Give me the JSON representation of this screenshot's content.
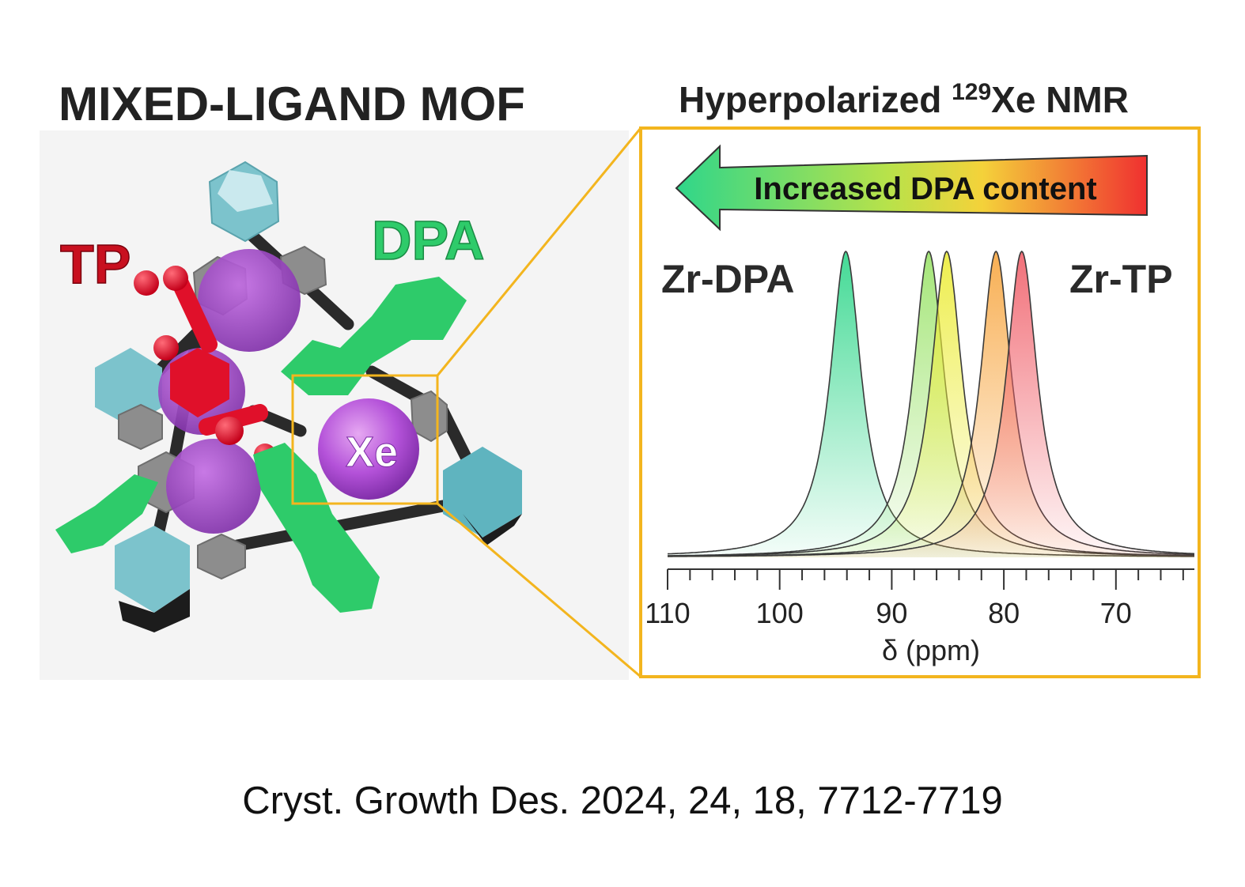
{
  "left_panel": {
    "title": "MIXED-LIGAND MOF",
    "label_tp": "TP",
    "label_dpa": "DPA",
    "label_xe": "Xe"
  },
  "right_panel": {
    "title_prefix": "Hyperpolarized ",
    "title_superscript": "129",
    "title_suffix": "Xe NMR",
    "arrow_label": "Increased DPA content",
    "label_left": "Zr-DPA",
    "label_right": "Zr-TP"
  },
  "chart_data": {
    "type": "line",
    "xlabel": "δ (ppm)",
    "ylabel": "",
    "xlim": [
      110,
      63
    ],
    "x_reversed": true,
    "ticks": [
      "110",
      "100",
      "90",
      "80",
      "70"
    ],
    "tick_values": [
      110,
      100,
      90,
      80,
      70
    ],
    "minor_tick_step": 2,
    "series": [
      {
        "peak_ppm": 94.1,
        "color": "#2fd68a"
      },
      {
        "peak_ppm": 86.7,
        "color": "#9be36a"
      },
      {
        "peak_ppm": 85.1,
        "color": "#ecec3a"
      },
      {
        "peak_ppm": 80.7,
        "color": "#f7a640"
      },
      {
        "peak_ppm": 78.4,
        "color": "#f0606a"
      }
    ]
  },
  "colors": {
    "frame": "#f3b51e",
    "tp": "#e0102a",
    "dpa": "#2ecb6a",
    "xe": "#a83fd3",
    "zr": "#7cc3cc"
  },
  "citation": "Cryst. Growth Des. 2024, 24, 18, 7712-7719"
}
